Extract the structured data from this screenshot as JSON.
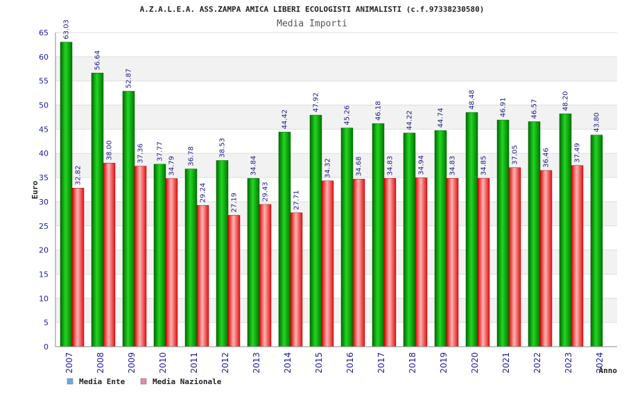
{
  "chart_data": {
    "type": "bar",
    "title": "A.Z.A.L.E.A. ASS.ZAMPA AMICA LIBERI ECOLOGISTI ANIMALISTI (c.f.97338230580)",
    "subtitle": "Media Importi",
    "xlabel": "Anno",
    "ylabel": "Euro",
    "ylim": [
      0,
      65
    ],
    "yticks": [
      0,
      5,
      10,
      15,
      20,
      25,
      30,
      35,
      40,
      45,
      50,
      55,
      60,
      65
    ],
    "grid": true,
    "legend_position": "bottom-left",
    "categories": [
      "2007",
      "2008",
      "2009",
      "2010",
      "2011",
      "2012",
      "2013",
      "2014",
      "2015",
      "2016",
      "2017",
      "2018",
      "2019",
      "2020",
      "2021",
      "2022",
      "2023",
      "2024"
    ],
    "series": [
      {
        "name": "Media Ente",
        "color": "#00a000",
        "legend_color": "#6fa8e8",
        "values": [
          63.03,
          56.64,
          52.87,
          37.77,
          36.78,
          38.53,
          34.84,
          44.42,
          47.92,
          45.26,
          46.18,
          44.22,
          44.74,
          48.48,
          46.91,
          46.57,
          48.2,
          43.8
        ],
        "labels": [
          "63.03",
          "56.64",
          "52.87",
          "37.77",
          "36.78",
          "38.53",
          "34.84",
          "44.42",
          "47.92",
          "45.26",
          "46.18",
          "44.22",
          "44.74",
          "48.48",
          "46.91",
          "46.57",
          "48.20",
          "43.80"
        ]
      },
      {
        "name": "Media Nazionale",
        "color": "#e02020",
        "legend_color": "#e58ab0",
        "values": [
          32.82,
          38.0,
          37.36,
          34.79,
          29.24,
          27.19,
          29.43,
          27.71,
          34.32,
          34.68,
          34.83,
          34.94,
          34.83,
          34.85,
          37.05,
          36.46,
          37.49,
          null
        ],
        "labels": [
          "32.82",
          "38.00",
          "37.36",
          "34.79",
          "29.24",
          "27.19",
          "29.43",
          "27.71",
          "34.32",
          "34.68",
          "34.83",
          "34.94",
          "34.83",
          "34.85",
          "37.05",
          "36.46",
          "37.49",
          ""
        ]
      }
    ]
  }
}
